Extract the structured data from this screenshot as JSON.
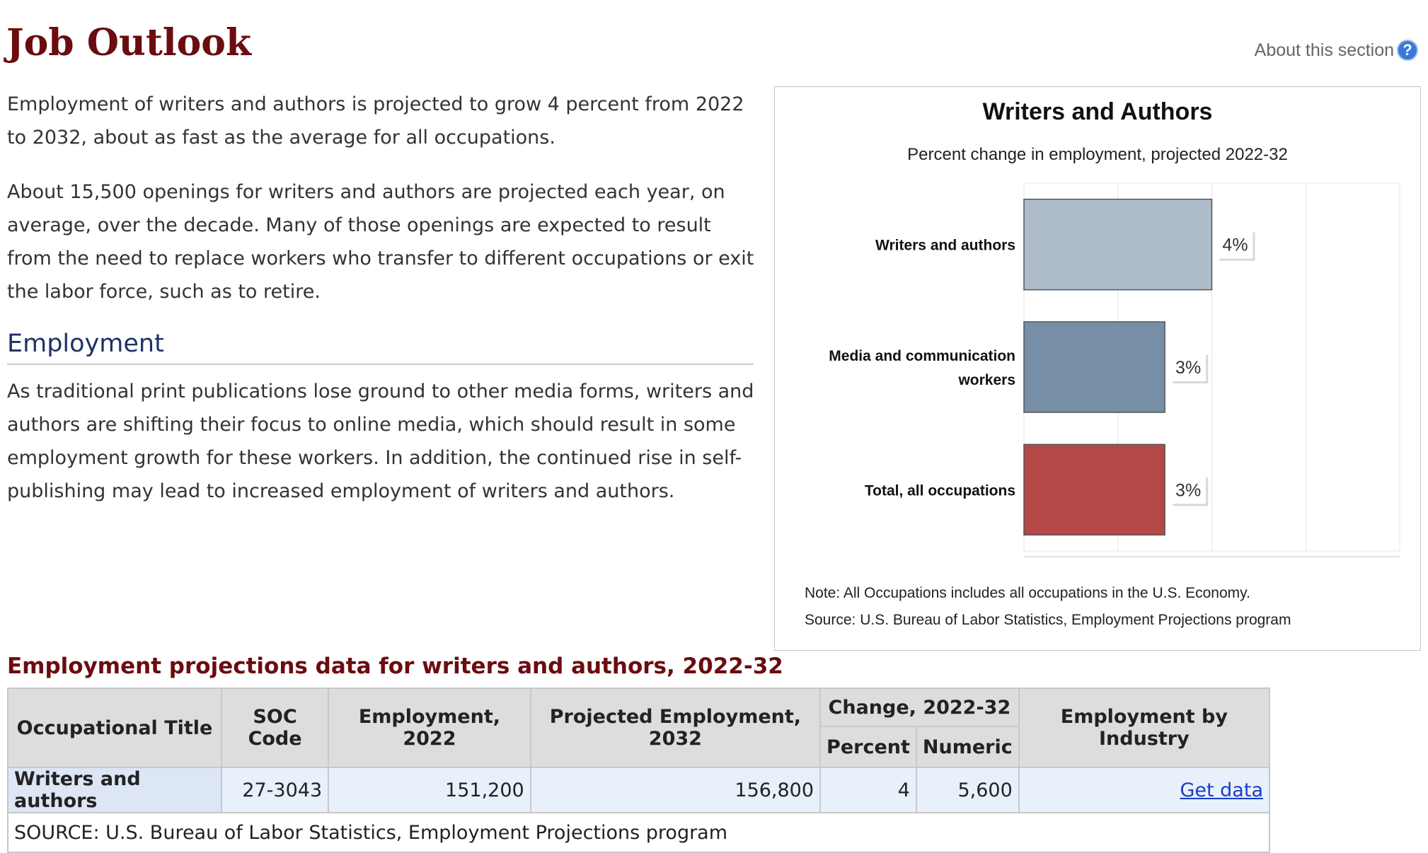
{
  "page": {
    "title": "Job Outlook",
    "about_link": "About this section",
    "about_icon": "help-icon"
  },
  "paragraphs": [
    "Employment of writers and authors is projected to grow 4 percent from 2022 to 2032, about as fast as the average for all occupations.",
    "About 15,500 openings for writers and authors are projected each year, on average, over the decade. Many of those openings are expected to result from the need to replace workers who transfer to different occupations or exit the labor force, such as to retire."
  ],
  "employment_section": {
    "heading": "Employment",
    "text": "As traditional print publications lose ground to other media forms, writers and authors are shifting their focus to online media, which should result in some employment growth for these workers. In addition, the continued rise in self-publishing may lead to increased employment of writers and authors."
  },
  "chart_data": {
    "type": "bar",
    "orientation": "horizontal",
    "title": "Writers and Authors",
    "subtitle": "Percent change in employment, projected 2022-32",
    "categories": [
      "Writers and authors",
      "Media and communication workers",
      "Total, all occupations"
    ],
    "category_lines": [
      [
        "Writers and authors"
      ],
      [
        "Media and communication",
        "workers"
      ],
      [
        "Total, all occupations"
      ]
    ],
    "values": [
      4,
      3,
      3
    ],
    "value_labels": [
      "4%",
      "3%",
      "3%"
    ],
    "colors": [
      "#aebccb",
      "#768ea6",
      "#b54746"
    ],
    "xlim": [
      0,
      8
    ],
    "grid": true,
    "note": "Note: All Occupations includes all occupations in the U.S. Economy.",
    "source": "Source: U.S. Bureau of Labor Statistics, Employment Projections program"
  },
  "table": {
    "caption": "Employment projections data for writers and authors, 2022-32",
    "headers": {
      "occupational_title": "Occupational Title",
      "soc_code": "SOC Code",
      "employment_2022": "Employment, 2022",
      "projected_employment_2032": "Projected Employment, 2032",
      "change_group": "Change, 2022-32",
      "percent": "Percent",
      "numeric": "Numeric",
      "employment_by_industry": "Employment by Industry"
    },
    "row": {
      "title": "Writers and authors",
      "soc_code": "27-3043",
      "employment_2022": "151,200",
      "projected_employment_2032": "156,800",
      "percent": "4",
      "numeric": "5,600",
      "link": "Get data"
    },
    "source": "SOURCE: U.S. Bureau of Labor Statistics, Employment Projections program"
  }
}
